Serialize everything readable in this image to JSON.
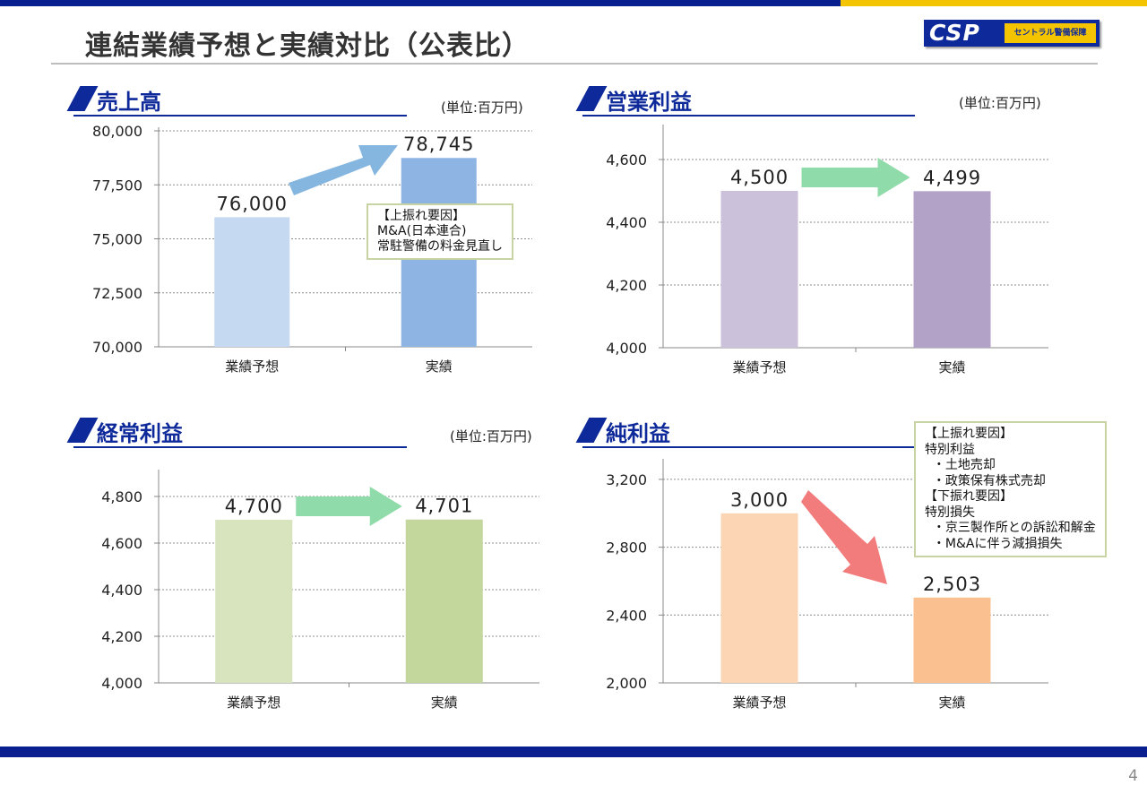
{
  "page": {
    "title": "連結業績予想と実績対比（公表比）",
    "page_number": "4",
    "logo": {
      "mark": "CSP",
      "sub": "セントラル警備保障"
    },
    "colors": {
      "brand_blue": "#0e2a9a",
      "brand_yellow": "#f5c400"
    }
  },
  "panels": [
    {
      "title": "売上高",
      "unit": "(単位:百万円)",
      "note": [
        "【上振れ要因】",
        "M&A(日本連合)",
        "常駐警備の料金見直し"
      ],
      "arrow_color": "#85b6e0"
    },
    {
      "title": "営業利益",
      "unit": "(単位:百万円)",
      "note": [],
      "arrow_color": "#8fdba9"
    },
    {
      "title": "経常利益",
      "unit": "(単位:百万円)",
      "note": [],
      "arrow_color": "#8fdba9"
    },
    {
      "title": "純利益",
      "unit": "",
      "note": [
        "【上振れ要因】",
        "特別利益",
        "  ・土地売却",
        "  ・政策保有株式売却",
        "【下振れ要因】",
        "特別損失",
        "  ・京三製作所との訴訟和解金",
        "  ・M&Aに伴う減損損失"
      ],
      "arrow_color": "#f27b7b"
    }
  ],
  "chart_data": [
    {
      "type": "bar",
      "title": "売上高",
      "categories": [
        "業績予想",
        "実績"
      ],
      "values": [
        76000,
        78745
      ],
      "value_labels": [
        "76,000",
        "78,745"
      ],
      "ylim": [
        70000,
        80000
      ],
      "yticks": [
        70000,
        72500,
        75000,
        77500,
        80000
      ],
      "ytick_labels": [
        "70,000",
        "72,500",
        "75,000",
        "77,500",
        "80,000"
      ],
      "bar_colors": [
        "#c5d9f1",
        "#8eb4e3"
      ],
      "grid": true
    },
    {
      "type": "bar",
      "title": "営業利益",
      "categories": [
        "業績予想",
        "実績"
      ],
      "values": [
        4500,
        4499
      ],
      "value_labels": [
        "4,500",
        "4,499"
      ],
      "ylim": [
        4000,
        4700
      ],
      "yticks": [
        4000,
        4200,
        4400,
        4600
      ],
      "ytick_labels": [
        "4,000",
        "4,200",
        "4,400",
        "4,600"
      ],
      "bar_colors": [
        "#ccc1da",
        "#b3a2c7"
      ],
      "grid": true
    },
    {
      "type": "bar",
      "title": "経常利益",
      "categories": [
        "業績予想",
        "実績"
      ],
      "values": [
        4700,
        4701
      ],
      "value_labels": [
        "4,700",
        "4,701"
      ],
      "ylim": [
        4000,
        4900
      ],
      "yticks": [
        4000,
        4200,
        4400,
        4600,
        4800
      ],
      "ytick_labels": [
        "4,000",
        "4,200",
        "4,400",
        "4,600",
        "4,800"
      ],
      "bar_colors": [
        "#d7e4bd",
        "#c3d69b"
      ],
      "grid": true
    },
    {
      "type": "bar",
      "title": "純利益",
      "categories": [
        "業績予想",
        "実績"
      ],
      "values": [
        3000,
        2503
      ],
      "value_labels": [
        "3,000",
        "2,503"
      ],
      "ylim": [
        2000,
        3300
      ],
      "yticks": [
        2000,
        2400,
        2800,
        3200
      ],
      "ytick_labels": [
        "2,000",
        "2,400",
        "2,800",
        "3,200"
      ],
      "bar_colors": [
        "#fcd5b5",
        "#fac090"
      ],
      "grid": true
    }
  ]
}
